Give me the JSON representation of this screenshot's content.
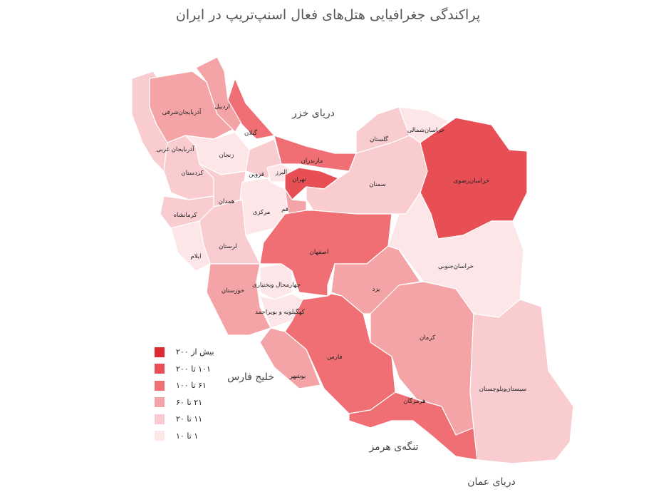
{
  "title": "پراکندگی جغرافیایی هتل‌های فعال اسنپ‌تریپ در ایران",
  "legend": [
    {
      "label": "بیش از ۲۰۰",
      "color": "#e02a32"
    },
    {
      "label": "۱۰۱ تا ۲۰۰",
      "color": "#e84f55"
    },
    {
      "label": "۶۱ تا ۱۰۰",
      "color": "#ef6f74"
    },
    {
      "label": "۲۱ تا ۶۰",
      "color": "#f4a3a6"
    },
    {
      "label": "۱۱ تا ۲۰",
      "color": "#f9cdd0"
    },
    {
      "label": "۱ تا ۱۰",
      "color": "#fce6e7"
    }
  ],
  "water": {
    "caspian": "دریای خزر",
    "persian_gulf": "خلیج فارس",
    "hormuz": "تنگه‌ی هرمز",
    "oman": "دریای عمان"
  },
  "provinces": [
    {
      "name": "آذربایجان غربی",
      "level": 4
    },
    {
      "name": "آذربایجان‌شرقی",
      "level": 3
    },
    {
      "name": "اردبیل",
      "level": 3
    },
    {
      "name": "گیلان",
      "level": 2
    },
    {
      "name": "زنجان",
      "level": 5
    },
    {
      "name": "کردستان",
      "level": 4
    },
    {
      "name": "قزوین",
      "level": 4
    },
    {
      "name": "مازندران",
      "level": 2
    },
    {
      "name": "البرز",
      "level": 5
    },
    {
      "name": "تهران",
      "level": 1
    },
    {
      "name": "گلستان",
      "level": 4
    },
    {
      "name": "خراسان‌شمالی",
      "level": 5
    },
    {
      "name": "خراسان‌رضوی",
      "level": 1
    },
    {
      "name": "سمنان",
      "level": 4
    },
    {
      "name": "همدان",
      "level": 4
    },
    {
      "name": "کرمانشاه",
      "level": 4
    },
    {
      "name": "مرکزی",
      "level": 5
    },
    {
      "name": "قم",
      "level": 3
    },
    {
      "name": "اصفهان",
      "level": 2
    },
    {
      "name": "لرستان",
      "level": 4
    },
    {
      "name": "ایلام",
      "level": 5
    },
    {
      "name": "خوزستان",
      "level": 3
    },
    {
      "name": "چهارمحال وبختیاری",
      "level": 5
    },
    {
      "name": "کهگیلویه و بویراحمد",
      "level": 5
    },
    {
      "name": "بوشهر",
      "level": 3
    },
    {
      "name": "فارس",
      "level": 2
    },
    {
      "name": "یزد",
      "level": 3
    },
    {
      "name": "کرمان",
      "level": 3
    },
    {
      "name": "هرمزگان",
      "level": 2
    },
    {
      "name": "خراسان‌جنوبی",
      "level": 5
    },
    {
      "name": "سیستان‌وبلوچستان",
      "level": 4
    }
  ]
}
